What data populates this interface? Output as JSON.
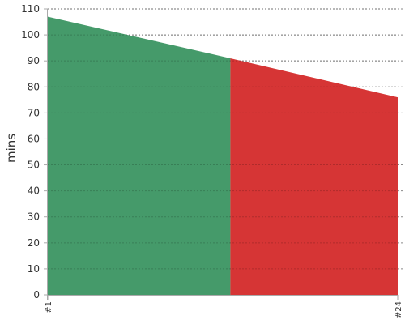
{
  "chart_data": {
    "type": "area",
    "title": "",
    "xlabel": "",
    "ylabel": "mins",
    "ylim": [
      0,
      110
    ],
    "yticks": [
      0,
      10,
      20,
      30,
      40,
      50,
      60,
      70,
      80,
      90,
      100,
      110
    ],
    "x_tick_labels": [
      "#1",
      "#24"
    ],
    "grid": true,
    "series": [
      {
        "color": "#459a6a",
        "points": [
          [
            1,
            107
          ],
          [
            13,
            91
          ]
        ]
      },
      {
        "color": "#d63535",
        "points": [
          [
            13,
            91
          ],
          [
            24,
            76
          ]
        ]
      }
    ],
    "x_range": [
      1,
      24
    ]
  }
}
